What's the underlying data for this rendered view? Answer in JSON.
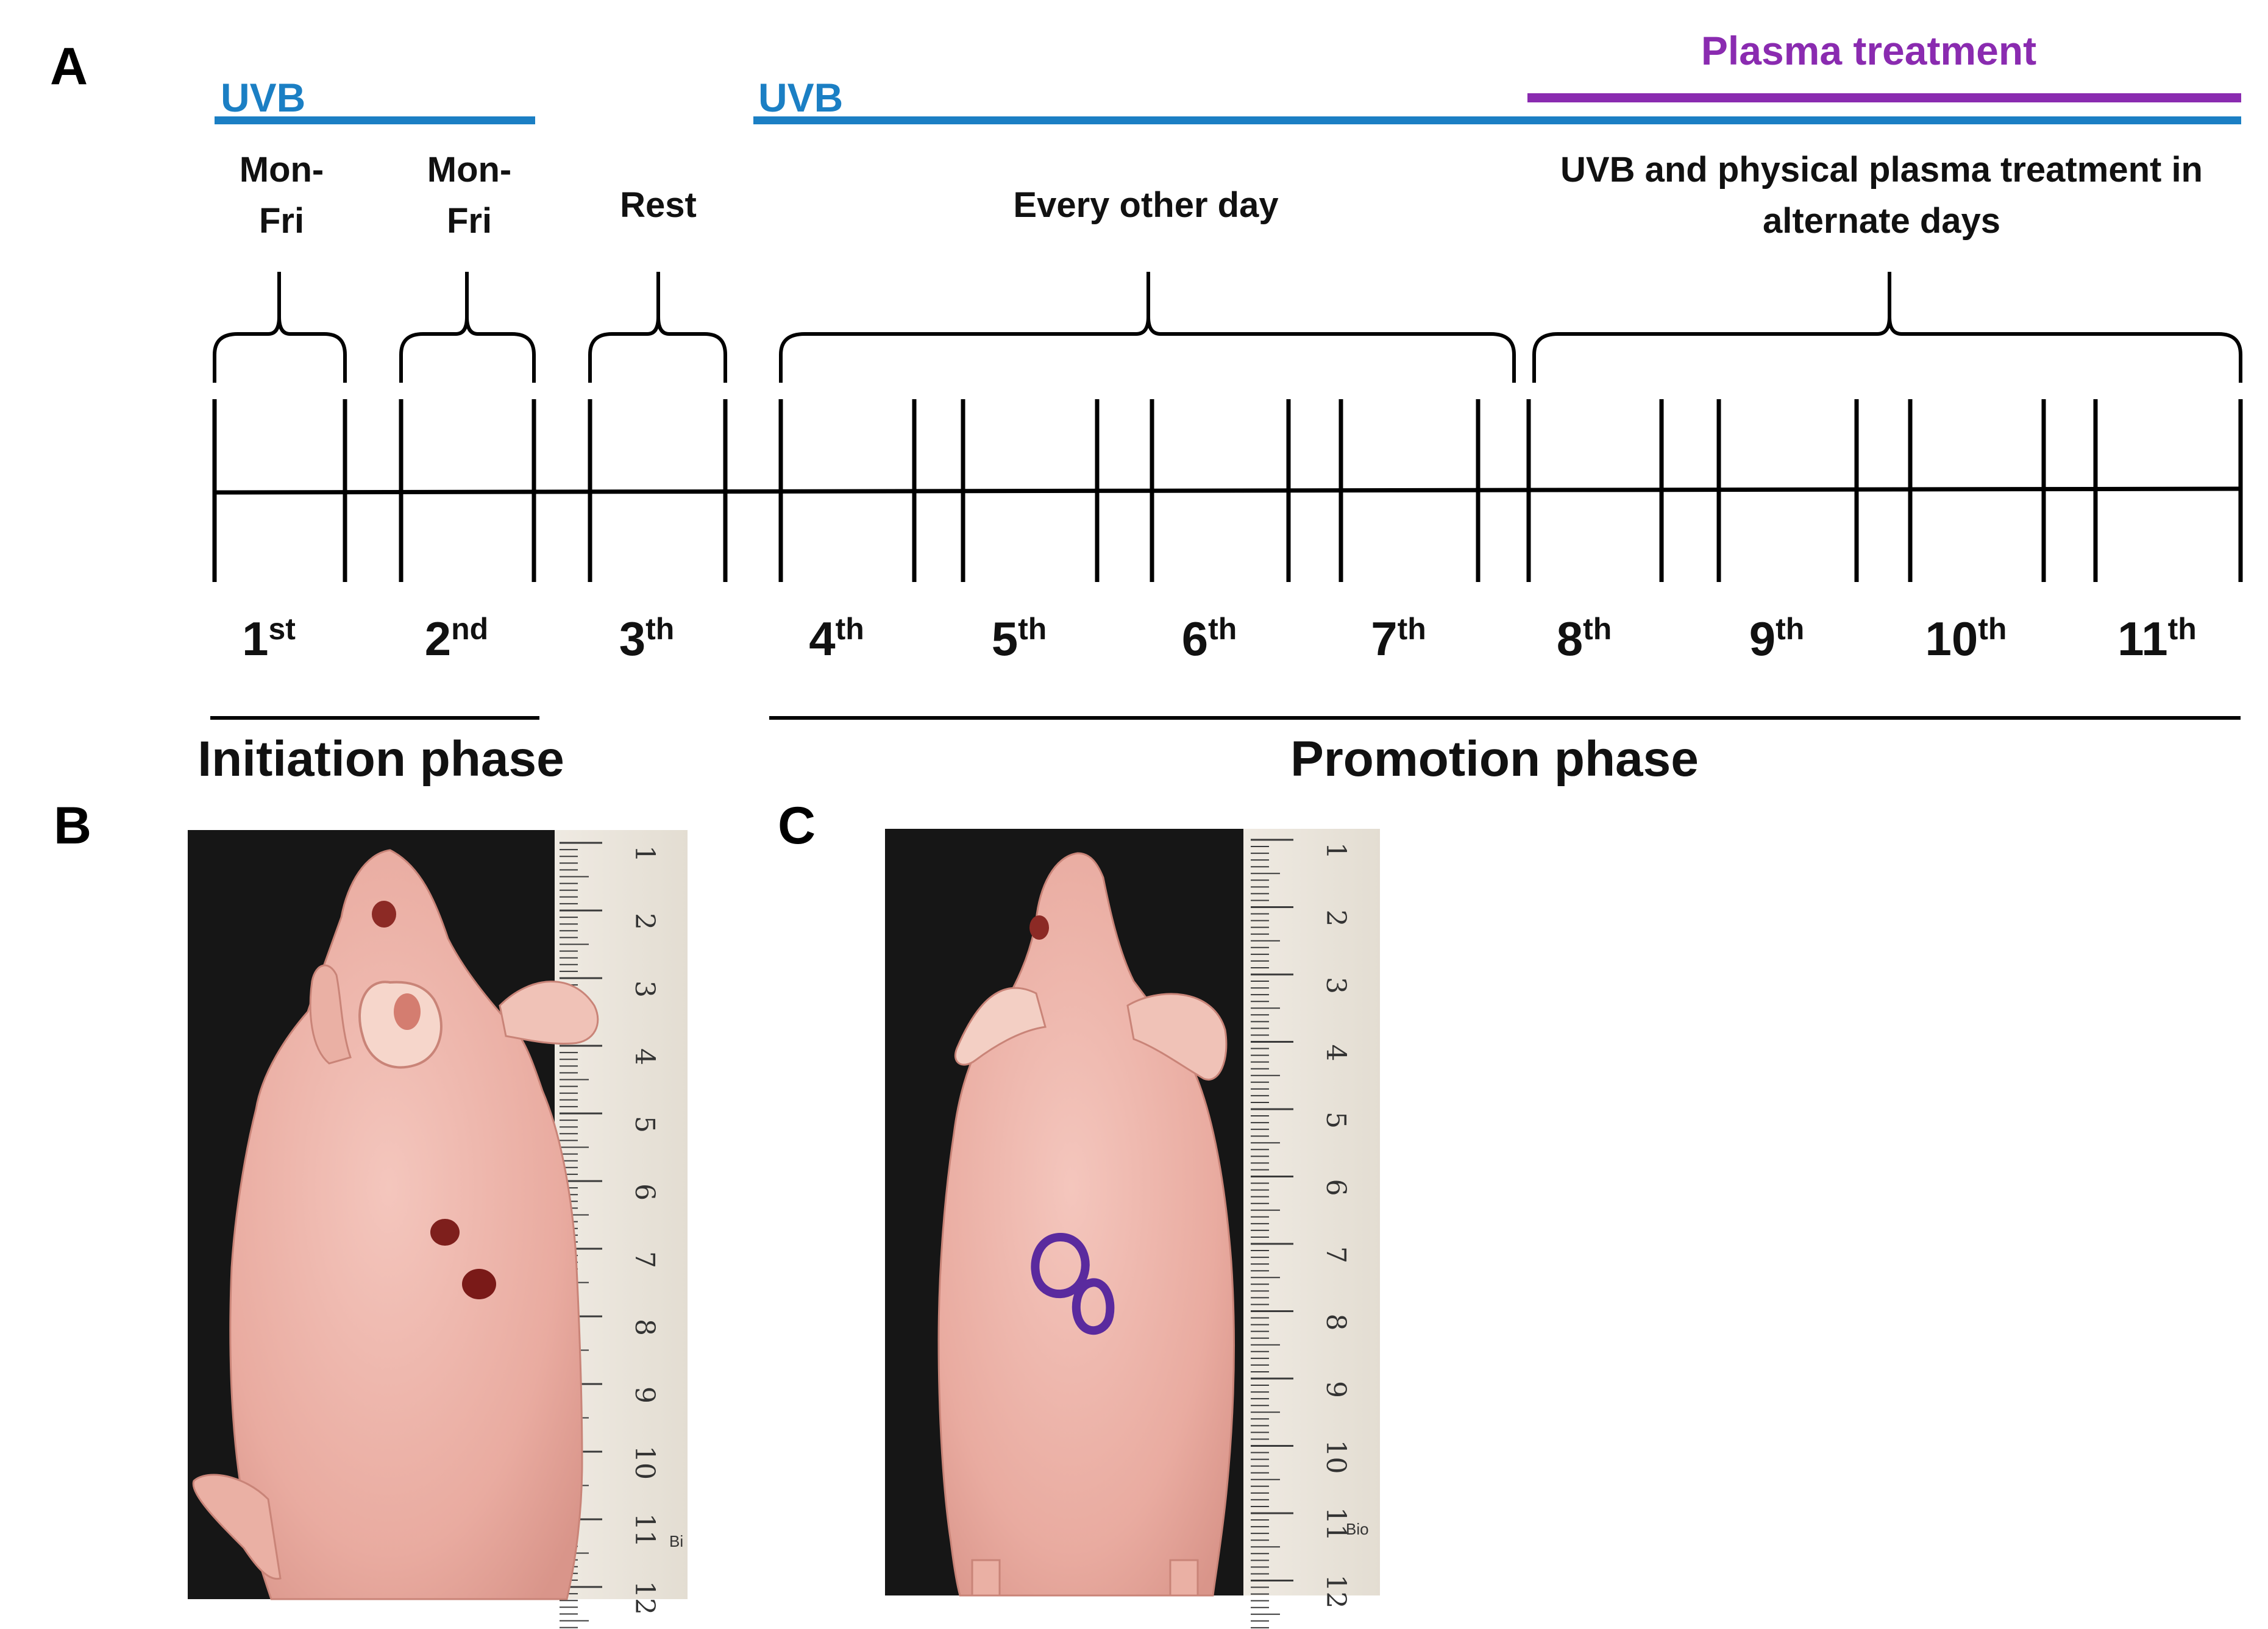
{
  "panels": {
    "a": "A",
    "b": "B",
    "c": "C"
  },
  "colors": {
    "uvb": "#1b7fc4",
    "plasma": "#8a2bb0",
    "axis": "#000000"
  },
  "bars": {
    "uvb_initiation_label": "UVB",
    "uvb_promotion_label": "UVB",
    "plasma_label": "Plasma treatment"
  },
  "schedule": {
    "week1_l1": "Mon-",
    "week1_l2": "Fri",
    "week2_l1": "Mon-",
    "week2_l2": "Fri",
    "rest": "Rest",
    "every_other_day": "Every other day",
    "alternate_l1": "UVB and physical plasma treatment in",
    "alternate_l2": "alternate days"
  },
  "weeks": [
    {
      "num": "1",
      "sup": "st"
    },
    {
      "num": "2",
      "sup": "nd"
    },
    {
      "num": "3",
      "sup": "th"
    },
    {
      "num": "4",
      "sup": "th"
    },
    {
      "num": "5",
      "sup": "th"
    },
    {
      "num": "6",
      "sup": "th"
    },
    {
      "num": "7",
      "sup": "th"
    },
    {
      "num": "8",
      "sup": "th"
    },
    {
      "num": "9",
      "sup": "th"
    },
    {
      "num": "10",
      "sup": "th"
    },
    {
      "num": "11",
      "sup": "th"
    }
  ],
  "phases": {
    "initiation": "Initiation phase",
    "promotion": "Promotion phase"
  },
  "ruler": {
    "numbers": [
      "1",
      "2",
      "3",
      "4",
      "5",
      "6",
      "7",
      "8",
      "9",
      "10",
      "11",
      "12"
    ],
    "brand_b": "Bi",
    "brand_c": "Bio"
  }
}
